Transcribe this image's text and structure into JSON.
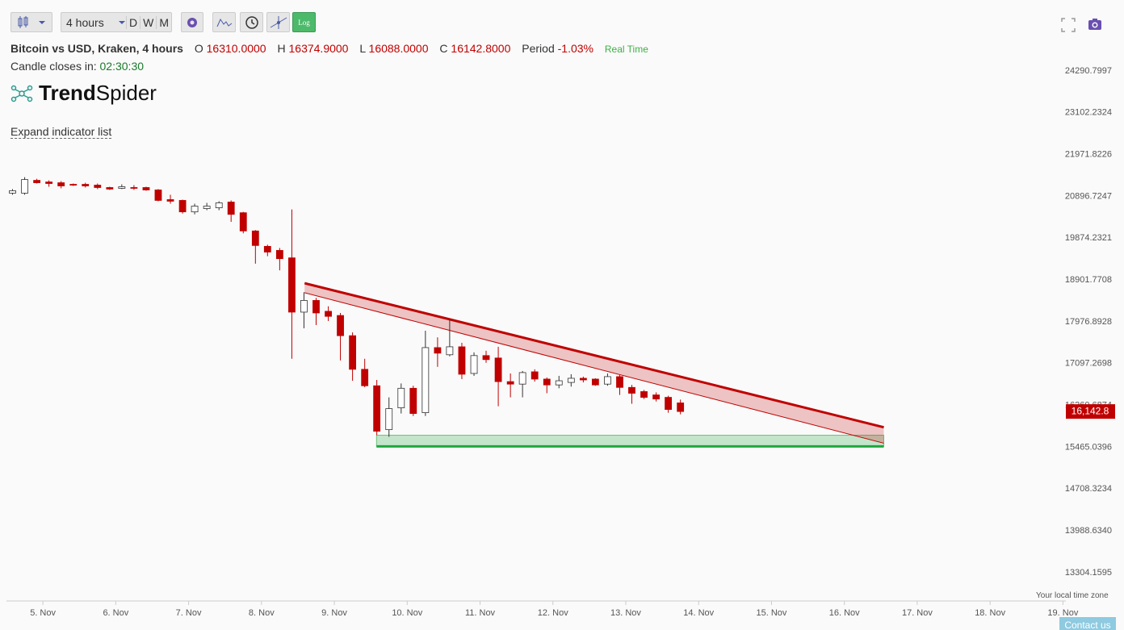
{
  "toolbar": {
    "interval": "4 hours",
    "periods": [
      "D",
      "W",
      "M"
    ],
    "log_button": "Log"
  },
  "header": {
    "title": "Bitcoin vs USD, Kraken, 4 hours",
    "ohlc": [
      {
        "label": "O",
        "value": "16310.0000"
      },
      {
        "label": "H",
        "value": "16374.9000"
      },
      {
        "label": "L",
        "value": "16088.0000"
      },
      {
        "label": "C",
        "value": "16142.8000"
      }
    ],
    "period_label": "Period",
    "period_value": "-1.03%",
    "realtime": "Real Time",
    "countdown_label": "Candle closes in:",
    "countdown": "02:30:30",
    "logo": [
      "Trend",
      "Spider"
    ],
    "expand": "Expand indicator list"
  },
  "chart_data": {
    "type": "candlestick",
    "log_scale": true,
    "x": [
      4.583,
      4.75,
      4.917,
      5.083,
      5.25,
      5.417,
      5.583,
      5.75,
      5.917,
      6.083,
      6.25,
      6.417,
      6.583,
      6.75,
      6.917,
      7.083,
      7.25,
      7.417,
      7.583,
      7.75,
      7.917,
      8.083,
      8.25,
      8.417,
      8.583,
      8.75,
      8.917,
      9.083,
      9.25,
      9.417,
      9.583,
      9.75,
      9.917,
      10.083,
      10.25,
      10.417,
      10.583,
      10.75,
      10.917,
      11.083,
      11.25,
      11.417,
      11.583,
      11.75,
      11.917,
      12.083,
      12.25,
      12.417,
      12.583,
      12.75,
      12.917,
      13.083,
      13.25,
      13.417,
      13.583,
      13.75
    ],
    "open": [
      20978,
      20978,
      21303,
      21262,
      21242,
      21201,
      21201,
      21181,
      21120,
      21100,
      21120,
      21120,
      21059,
      20816,
      20796,
      20512,
      20593,
      20613,
      20755,
      20491,
      20048,
      19681,
      19585,
      19411,
      18187,
      18444,
      18205,
      18114,
      17680,
      16981,
      16649,
      15795,
      16214,
      16599,
      16120,
      17429,
      17280,
      17446,
      16897,
      17263,
      17213,
      16732,
      16682,
      16930,
      16783,
      16666,
      16716,
      16799,
      16783,
      16682,
      16832,
      16616,
      16533,
      16467,
      16419,
      16310
    ],
    "high": [
      21080,
      21384,
      21343,
      21303,
      21283,
      21222,
      21242,
      21222,
      21140,
      21201,
      21181,
      21140,
      21080,
      20938,
      20816,
      20715,
      20735,
      20776,
      20796,
      20512,
      20069,
      19720,
      19643,
      20572,
      18627,
      18500,
      18315,
      18169,
      17750,
      17197,
      16766,
      16419,
      16695,
      16649,
      17785,
      17645,
      18030,
      17530,
      17330,
      17363,
      17446,
      16897,
      16947,
      16981,
      16816,
      16848,
      16881,
      16832,
      16799,
      16897,
      16865,
      16666,
      16566,
      16517,
      16451,
      16374.9
    ],
    "low": [
      20938,
      20938,
      21222,
      21140,
      21100,
      21161,
      21120,
      21080,
      21059,
      21080,
      21059,
      21039,
      20775,
      20715,
      20471,
      20451,
      20553,
      20553,
      20268,
      19990,
      19276,
      19450,
      19122,
      17197,
      17837,
      17907,
      17994,
      17163,
      16749,
      16620,
      15690,
      15660,
      16104,
      16056,
      16056,
      17031,
      17247,
      16783,
      16848,
      17114,
      16245,
      16419,
      16419,
      16732,
      16500,
      16599,
      16632,
      16716,
      16649,
      16649,
      16467,
      16293,
      16386,
      16337,
      16119,
      16088
    ],
    "close": [
      21039,
      21323,
      21242,
      21222,
      21161,
      21181,
      21161,
      21120,
      21080,
      21140,
      21100,
      21059,
      20796,
      20776,
      20512,
      20654,
      20654,
      20735,
      20451,
      20048,
      19701,
      19546,
      19392,
      18187,
      18444,
      18169,
      18095,
      17680,
      16981,
      16649,
      15765,
      16198,
      16599,
      16104,
      17429,
      17313,
      17446,
      16881,
      17263,
      17180,
      16732,
      16682,
      16914,
      16783,
      16666,
      16749,
      16799,
      16766,
      16666,
      16832,
      16616,
      16500,
      16419,
      16386,
      16182,
      16142.8
    ],
    "up_color": "#ffffff",
    "down_color": "#c00000",
    "last_price": {
      "value": 16142.8,
      "label": "16,142.8"
    },
    "resistance_channel": {
      "x": [
        8.592,
        16.541
      ],
      "upper": [
        18829,
        15840
      ],
      "lower": [
        18615,
        15540
      ],
      "color": "#c00000"
    },
    "support_zone": {
      "x": [
        9.579,
        16.541
      ],
      "top": 15690,
      "bottom": 15480,
      "color": "#1fa83c"
    },
    "xlim": [
      4.5,
      19.04
    ],
    "xticks": [
      {
        "value": 5,
        "label": "5. Nov"
      },
      {
        "value": 6,
        "label": "6. Nov"
      },
      {
        "value": 7,
        "label": "7. Nov"
      },
      {
        "value": 8,
        "label": "8. Nov"
      },
      {
        "value": 9,
        "label": "9. Nov"
      },
      {
        "value": 10,
        "label": "10. Nov"
      },
      {
        "value": 11,
        "label": "11. Nov"
      },
      {
        "value": 12,
        "label": "12. Nov"
      },
      {
        "value": 13,
        "label": "13. Nov"
      },
      {
        "value": 14,
        "label": "14. Nov"
      },
      {
        "value": 15,
        "label": "15. Nov"
      },
      {
        "value": 16,
        "label": "16. Nov"
      },
      {
        "value": 17,
        "label": "17. Nov"
      },
      {
        "value": 18,
        "label": "18. Nov"
      },
      {
        "value": 19,
        "label": "19. Nov"
      }
    ],
    "ylim": [
      12860,
      24717
    ],
    "yticks": [
      24290.7997,
      23102.2324,
      21971.8226,
      20896.7247,
      19874.2321,
      18901.7708,
      17976.8928,
      17097.2698,
      16260.6874,
      15465.0396,
      14708.3234,
      {
        "value": 13988.634,
        "label": "13988.6340"
      },
      13304.1595
    ]
  },
  "footer": {
    "timezone_note": "Your local time zone",
    "contact": "Contact us"
  }
}
